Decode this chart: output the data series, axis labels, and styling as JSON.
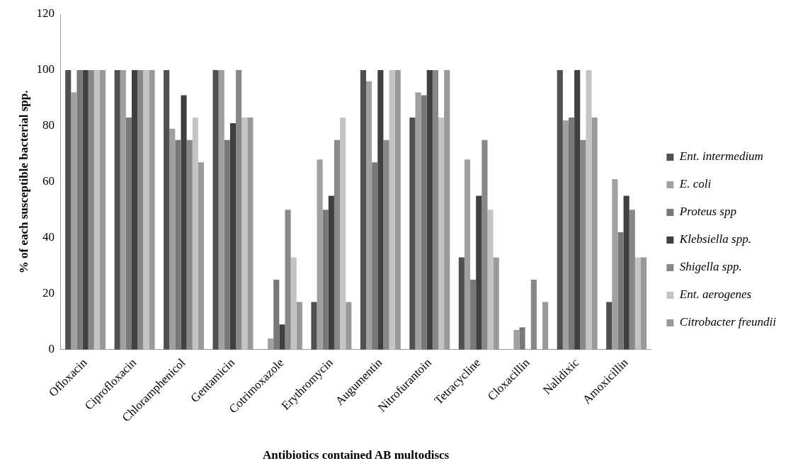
{
  "chart_data": {
    "type": "bar",
    "xlabel": "Antibiotics contained AB multodiscs",
    "ylabel": "% of each susceptible bacterial spp.",
    "categories": [
      "Ofloxacin",
      "Ciprofloxacin",
      "Chloramphenicol",
      "Gentamicin",
      "Cotrimoxazole",
      "Erythromycin",
      "Augumentin",
      "Nitrofurantoin",
      "Tetracycline",
      "Cloxacillin",
      "Nalidixic",
      "Amoxicillin"
    ],
    "series": [
      {
        "name": "Ent. intermedium",
        "color": "#505050",
        "values": [
          100,
          100,
          100,
          100,
          0,
          17,
          100,
          83,
          33,
          0,
          100,
          17
        ]
      },
      {
        "name": "E. coli",
        "color": "#a0a0a0",
        "values": [
          92,
          100,
          79,
          100,
          4,
          68,
          96,
          92,
          68,
          7,
          82,
          61
        ]
      },
      {
        "name": "Proteus spp",
        "color": "#787878",
        "values": [
          100,
          83,
          75,
          75,
          25,
          50,
          67,
          91,
          25,
          8,
          83,
          42
        ]
      },
      {
        "name": "Klebsiella spp.",
        "color": "#404040",
        "values": [
          100,
          100,
          91,
          81,
          9,
          55,
          100,
          100,
          55,
          0,
          100,
          55
        ]
      },
      {
        "name": "Shigella spp.",
        "color": "#888888",
        "values": [
          100,
          100,
          75,
          100,
          50,
          75,
          75,
          100,
          75,
          25,
          75,
          50
        ]
      },
      {
        "name": "Ent. aerogenes",
        "color": "#c4c4c4",
        "values": [
          100,
          100,
          83,
          83,
          33,
          83,
          100,
          83,
          50,
          0,
          100,
          33
        ]
      },
      {
        "name": "Citrobacter freundii",
        "color": "#999999",
        "values": [
          100,
          100,
          67,
          83,
          17,
          17,
          100,
          100,
          33,
          17,
          83,
          33
        ]
      }
    ],
    "ylim": [
      0,
      120
    ],
    "yticks": [
      0,
      20,
      40,
      60,
      80,
      100,
      120
    ],
    "legend": "right"
  }
}
